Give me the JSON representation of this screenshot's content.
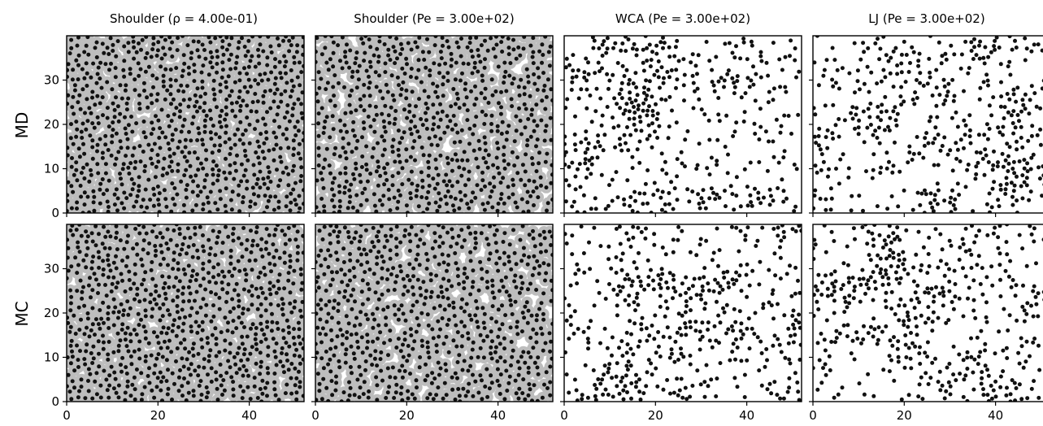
{
  "figure": {
    "column_titles": [
      "Shoulder (ρ = 4.00e-01)",
      "Shoulder (Pe = 3.00e+02)",
      "WCA (Pe = 3.00e+02)",
      "LJ (Pe = 3.00e+02)"
    ],
    "row_labels": [
      "MD",
      "MC"
    ]
  },
  "colors": {
    "particle": "#111111",
    "shoulder_halo": "#bdbdbd",
    "axes": "#000000",
    "background": "#ffffff"
  },
  "chart_data": {
    "type": "scatter",
    "layout": "grid 2 rows x 4 columns",
    "x_ticks": [
      0,
      20,
      40
    ],
    "y_ticks": [
      0,
      10,
      20,
      30
    ],
    "xlim": [
      0,
      52
    ],
    "ylim": [
      0,
      40
    ],
    "panels": [
      {
        "row": "MD",
        "column": "Shoulder (ρ = 4.00e-01)",
        "style": "shoulder",
        "pattern": "uniform",
        "n_particles": 800,
        "seed": 11
      },
      {
        "row": "MD",
        "column": "Shoulder (Pe = 3.00e+02)",
        "style": "shoulder",
        "pattern": "uniform",
        "n_particles": 700,
        "seed": 23
      },
      {
        "row": "MD",
        "column": "WCA (Pe = 3.00e+02)",
        "style": "point",
        "pattern": "clustered",
        "n_particles": 450,
        "seed": 37
      },
      {
        "row": "MD",
        "column": "LJ (Pe = 3.00e+02)",
        "style": "point",
        "pattern": "clustered",
        "n_particles": 450,
        "seed": 41
      },
      {
        "row": "MC",
        "column": "Shoulder (ρ = 4.00e-01)",
        "style": "shoulder",
        "pattern": "uniform",
        "n_particles": 800,
        "seed": 53
      },
      {
        "row": "MC",
        "column": "Shoulder (Pe = 3.00e+02)",
        "style": "shoulder",
        "pattern": "uniform",
        "n_particles": 700,
        "seed": 67
      },
      {
        "row": "MC",
        "column": "WCA (Pe = 3.00e+02)",
        "style": "point",
        "pattern": "clustered",
        "n_particles": 450,
        "seed": 71
      },
      {
        "row": "MC",
        "column": "LJ (Pe = 3.00e+02)",
        "style": "point",
        "pattern": "clustered",
        "n_particles": 450,
        "seed": 89
      }
    ]
  }
}
